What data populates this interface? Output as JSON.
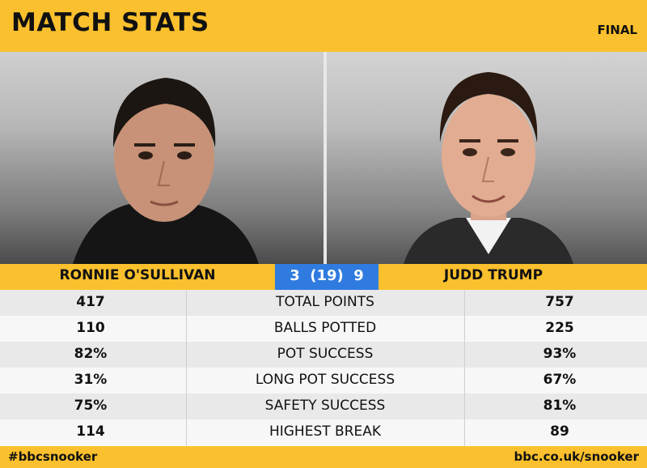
{
  "header": {
    "title": "MATCH STATS",
    "status": "FINAL"
  },
  "players": {
    "left": {
      "name": "RONNIE O'SULLIVAN"
    },
    "right": {
      "name": "JUDD TRUMP"
    }
  },
  "score": {
    "display": "3  (19)  9"
  },
  "stats": [
    {
      "label": "TOTAL POINTS",
      "left": "417",
      "right": "757"
    },
    {
      "label": "BALLS POTTED",
      "left": "110",
      "right": "225"
    },
    {
      "label": "POT SUCCESS",
      "left": "82%",
      "right": "93%"
    },
    {
      "label": "LONG POT SUCCESS",
      "left": "31%",
      "right": "67%"
    },
    {
      "label": "SAFETY SUCCESS",
      "left": "75%",
      "right": "81%"
    },
    {
      "label": "HIGHEST BREAK",
      "left": "114",
      "right": "89"
    }
  ],
  "footer": {
    "hashtag": "#bbcsnooker",
    "site": "bbc.co.uk/snooker"
  },
  "colors": {
    "accent": "#fbc02d",
    "score_bg": "#2f7be0"
  }
}
